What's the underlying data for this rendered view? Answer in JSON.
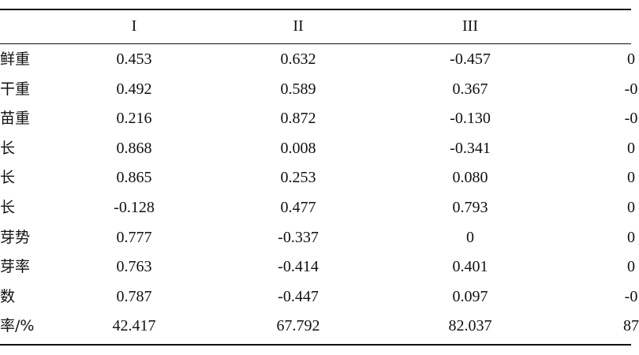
{
  "table": {
    "header": [
      "I",
      "II",
      "III",
      ""
    ],
    "rows": [
      [
        "鲜重",
        "0.453",
        "0.632",
        "-0.457",
        "0"
      ],
      [
        "干重",
        "0.492",
        "0.589",
        "0.367",
        "-0"
      ],
      [
        "苗重",
        "0.216",
        "0.872",
        "-0.130",
        "-0"
      ],
      [
        "长",
        "0.868",
        "0.008",
        "-0.341",
        "0"
      ],
      [
        "长",
        "0.865",
        "0.253",
        "0.080",
        "0"
      ],
      [
        "长",
        "-0.128",
        "0.477",
        "0.793",
        "0"
      ],
      [
        "芽势",
        "0.777",
        "-0.337",
        "0",
        "0"
      ],
      [
        "芽率",
        "0.763",
        "-0.414",
        "0.401",
        "0"
      ],
      [
        "数",
        "0.787",
        "-0.447",
        "0.097",
        "-0"
      ],
      [
        "率/%",
        "42.417",
        "67.792",
        "82.037",
        "87"
      ]
    ]
  }
}
